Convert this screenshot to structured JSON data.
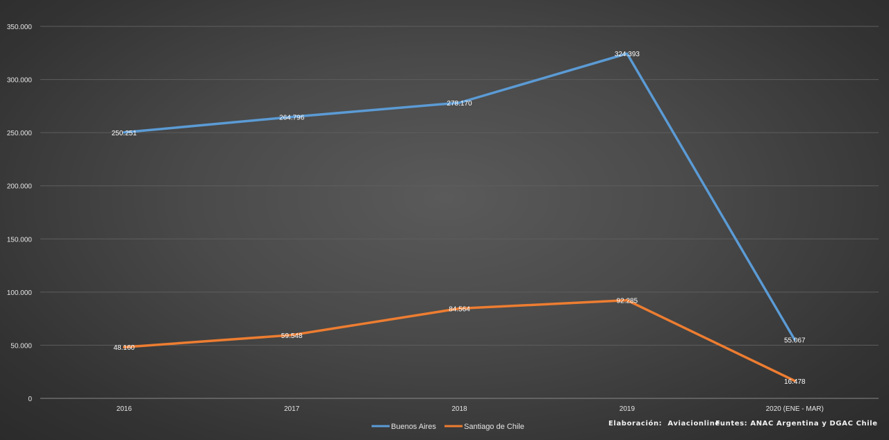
{
  "chart_data": {
    "type": "line",
    "categories": [
      "2016",
      "2017",
      "2018",
      "2019",
      "2020 (ENE - MAR)"
    ],
    "series": [
      {
        "name": "Buenos Aires",
        "values": [
          250251,
          264796,
          278170,
          324393,
          55067
        ],
        "labels": [
          "250.251",
          "264.796",
          "278.170",
          "324.393",
          "55.067"
        ],
        "color": "#5b9bd5"
      },
      {
        "name": "Santiago de Chile",
        "values": [
          48160,
          59548,
          84564,
          92285,
          16478
        ],
        "labels": [
          "48.160",
          "59.548",
          "84.564",
          "92.285",
          "16.478"
        ],
        "color": "#ed7d31"
      }
    ],
    "ylim": [
      0,
      350000
    ],
    "yticks": [
      0,
      50000,
      100000,
      150000,
      200000,
      250000,
      300000,
      350000
    ],
    "ytick_labels": [
      "0",
      "50.000",
      "100.000",
      "150.000",
      "200.000",
      "250.000",
      "300.000",
      "350.000"
    ],
    "grid": true,
    "legend": "bottom",
    "title": "",
    "xlabel": "",
    "ylabel": ""
  },
  "credits": {
    "elaboracion": "Elaboración:  Aviacionline",
    "fuentes": "Funtes: ANAC Argentina y DGAC Chile"
  }
}
